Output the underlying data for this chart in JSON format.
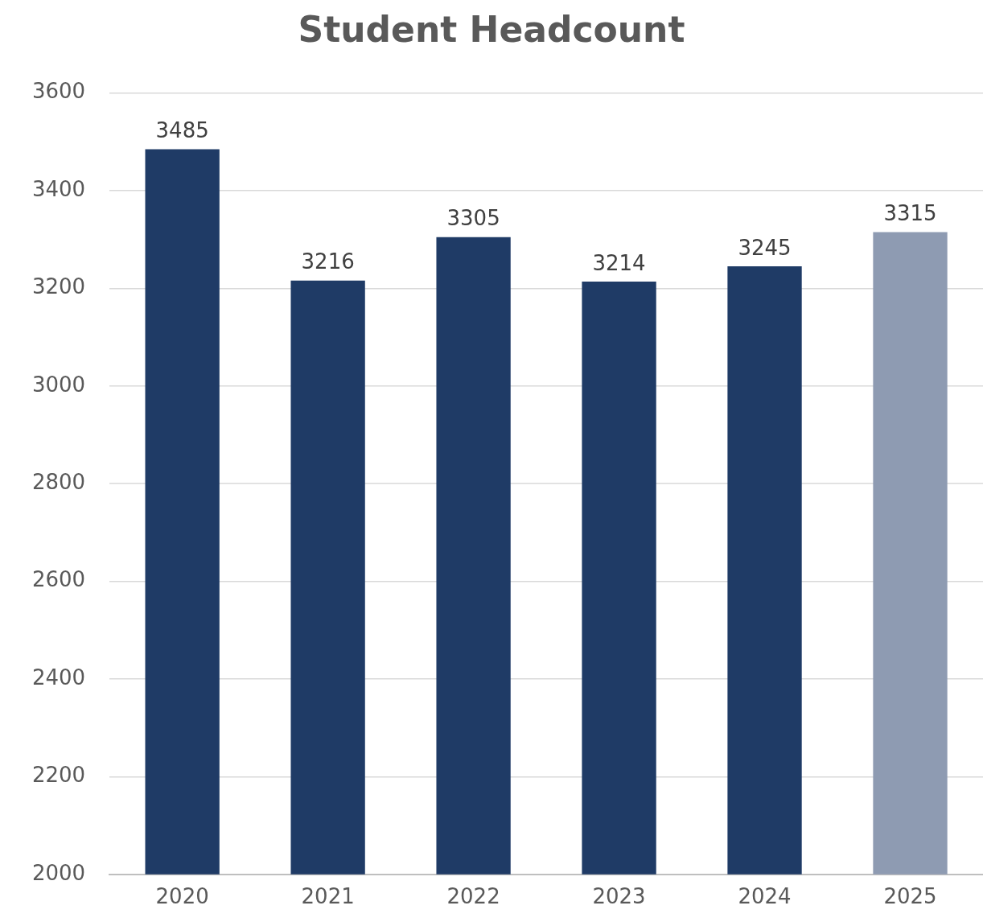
{
  "chart_data": {
    "type": "bar",
    "title": "Student Headcount",
    "categories": [
      "2020",
      "2021",
      "2022",
      "2023",
      "2024",
      "2025"
    ],
    "values": [
      3485,
      3216,
      3305,
      3214,
      3245,
      3315
    ],
    "colors": [
      "#1f3b66",
      "#1f3b66",
      "#1f3b66",
      "#1f3b66",
      "#1f3b66",
      "#8e9bb2"
    ],
    "ylim": [
      2000,
      3600
    ],
    "yticks": [
      2000,
      2200,
      2400,
      2600,
      2800,
      3000,
      3200,
      3400,
      3600
    ],
    "grid": "y",
    "data_labels": true,
    "legend": false
  }
}
